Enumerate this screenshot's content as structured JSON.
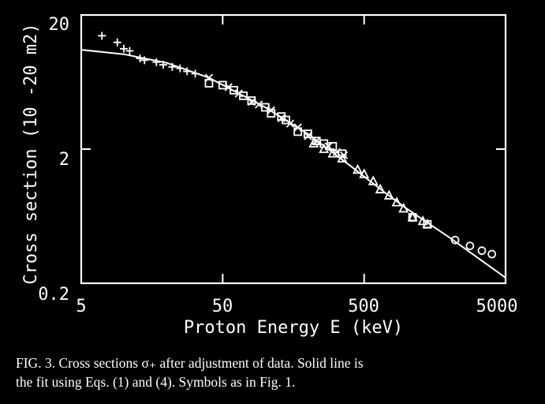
{
  "chart_data": {
    "type": "scatter",
    "xlabel": "Proton Energy E (keV)",
    "ylabel": "Cross section (10 -20 m2)",
    "xscale": "log",
    "yscale": "log",
    "xlim": [
      5,
      5000
    ],
    "ylim": [
      0.2,
      20
    ],
    "x_ticks": [
      "5",
      "50",
      "500",
      "5000"
    ],
    "y_ticks": [
      "20",
      "2",
      "0.2"
    ],
    "fit_line": {
      "x": [
        5,
        10,
        20,
        40,
        70,
        100,
        200,
        400,
        700,
        1000,
        2000,
        5000
      ],
      "y": [
        11.0,
        10.2,
        8.8,
        6.8,
        5.0,
        4.1,
        2.6,
        1.5,
        0.95,
        0.72,
        0.44,
        0.22
      ]
    },
    "series": [
      {
        "symbol": "plus",
        "x": [
          7,
          9,
          10,
          11,
          13,
          14,
          17,
          19,
          22,
          25,
          28,
          32
        ],
        "y": [
          14,
          12.5,
          11.2,
          10.8,
          9.5,
          9.2,
          8.9,
          8.5,
          8.2,
          8.0,
          7.6,
          7.3
        ]
      },
      {
        "symbol": "square",
        "x": [
          40,
          50,
          60,
          70,
          80,
          100,
          110,
          130,
          140,
          170,
          200,
          230,
          260,
          300,
          350,
          1100,
          1400
        ],
        "y": [
          6.2,
          6.0,
          5.5,
          5.0,
          4.6,
          4.1,
          3.7,
          3.5,
          3.3,
          2.7,
          2.6,
          2.3,
          2.2,
          2.1,
          1.85,
          0.62,
          0.55
        ]
      },
      {
        "symbol": "cross",
        "x": [
          40,
          55,
          65,
          80,
          90,
          110,
          130,
          150,
          170,
          200,
          230,
          280,
          320,
          360
        ],
        "y": [
          6.8,
          5.8,
          5.2,
          4.5,
          4.3,
          3.9,
          3.4,
          3.1,
          2.9,
          2.5,
          2.3,
          2.1,
          1.9,
          1.8
        ]
      },
      {
        "symbol": "triangle",
        "x": [
          220,
          260,
          300,
          350,
          450,
          500,
          580,
          650,
          750,
          850,
          950,
          1100,
          1300,
          1400
        ],
        "y": [
          2.2,
          2.0,
          1.85,
          1.7,
          1.4,
          1.3,
          1.15,
          1.0,
          0.9,
          0.8,
          0.72,
          0.62,
          0.58,
          0.55
        ]
      },
      {
        "symbol": "circle",
        "x": [
          1100,
          2200,
          2800,
          3400,
          4000
        ],
        "y": [
          0.62,
          0.42,
          0.38,
          0.35,
          0.33
        ]
      }
    ]
  },
  "caption": {
    "line1": "FIG. 3.  Cross sections σ₊ after adjustment of data.  Solid line is",
    "line2": "the fit using Eqs. (1) and (4).  Symbols as in Fig. 1."
  }
}
